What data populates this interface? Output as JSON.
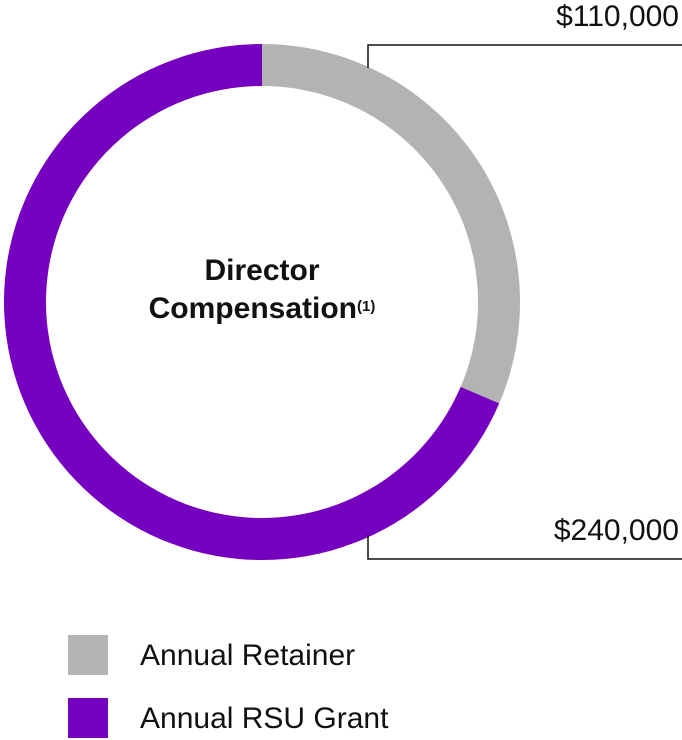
{
  "chart_data": {
    "type": "donut",
    "title": "Director Compensation",
    "title_note": "(1)",
    "categories": [
      "Annual Retainer",
      "Annual RSU Grant"
    ],
    "values": [
      110000,
      240000
    ],
    "value_labels": [
      "$110,000",
      "$240,000"
    ],
    "colors": [
      "#b3b3b3",
      "#7500c0"
    ]
  }
}
